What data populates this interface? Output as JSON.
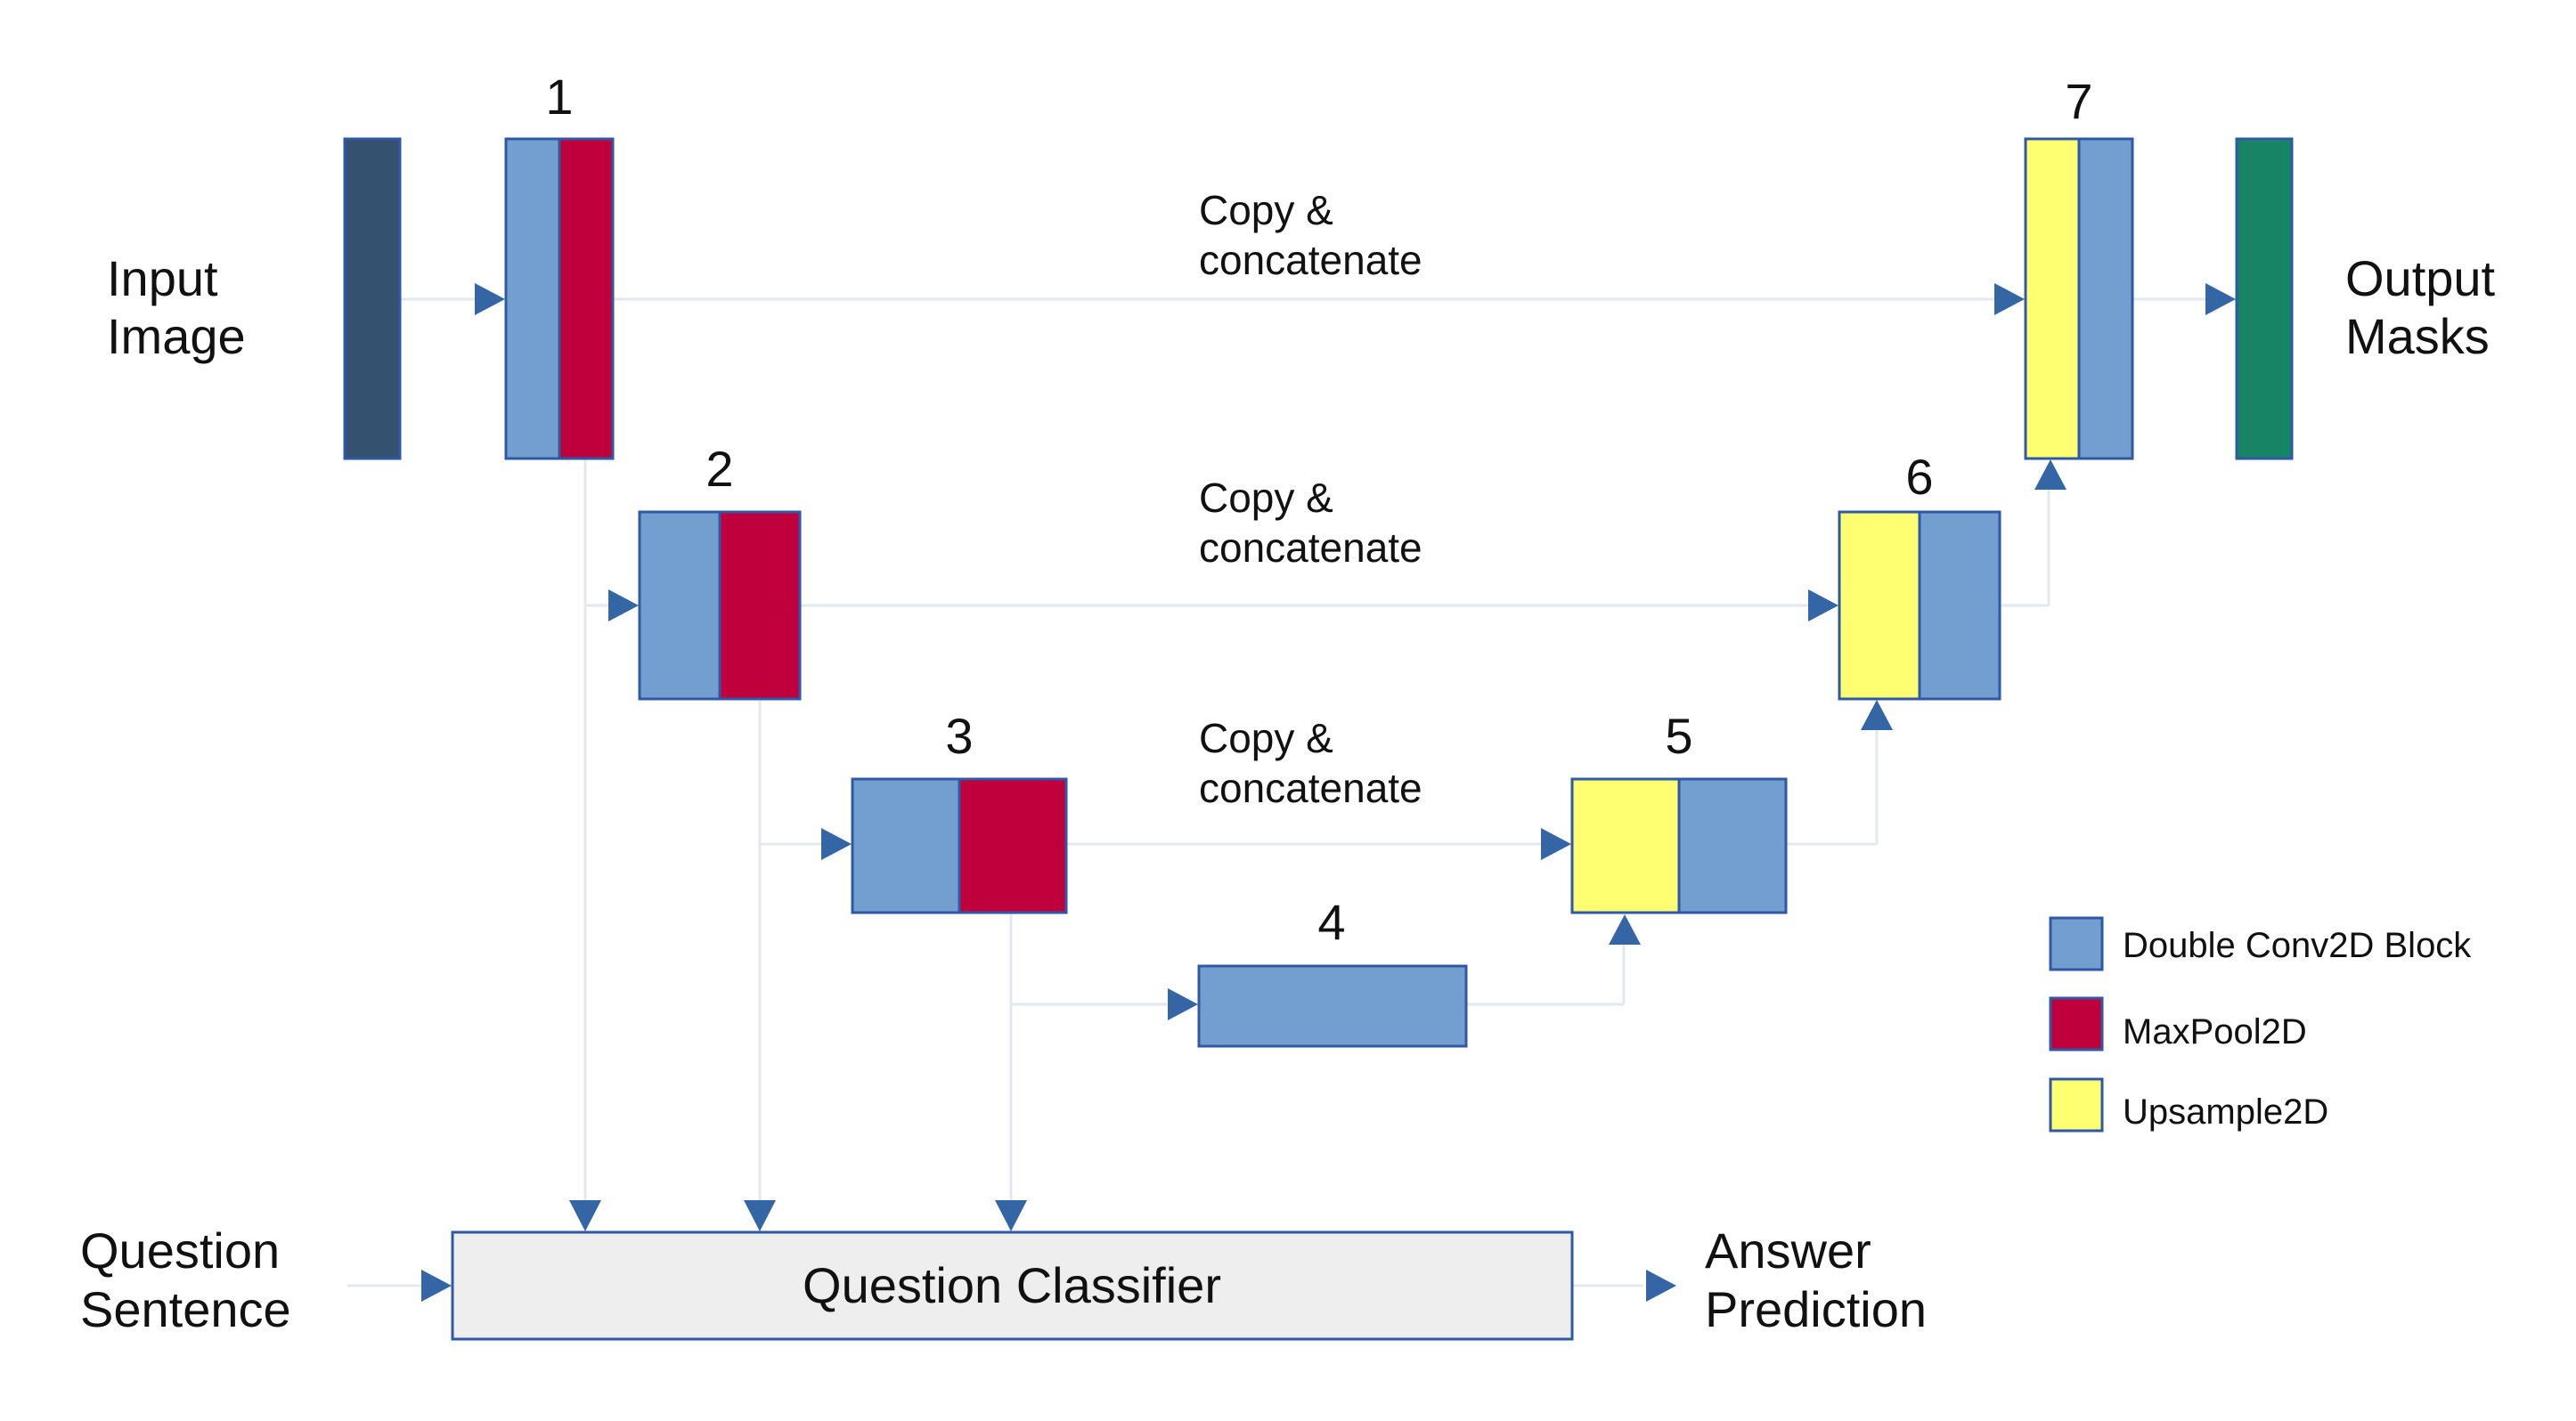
{
  "input_label": [
    "Input",
    "Image"
  ],
  "output_label": [
    "Output",
    "Masks"
  ],
  "question_label": [
    "Question",
    "Sentence"
  ],
  "answer_label": [
    "Answer",
    "Prediction"
  ],
  "classifier_label": "Question Classifier",
  "copy_labels": [
    [
      "Copy &",
      "concatenate"
    ],
    [
      "Copy &",
      "concatenate"
    ],
    [
      "Copy &",
      "concatenate"
    ]
  ],
  "block_numbers": [
    "1",
    "2",
    "3",
    "4",
    "5",
    "6",
    "7"
  ],
  "legend": [
    {
      "label": "Double Conv2D Block",
      "color": "#729fcf"
    },
    {
      "label": "MaxPool2D",
      "color": "#c0003c"
    },
    {
      "label": "Upsample2D",
      "color": "#ffff72"
    }
  ],
  "colors": {
    "conv": "#729fcf",
    "maxpool": "#c0003c",
    "upsample": "#ffff72",
    "input": "#34516f",
    "output": "#188466",
    "classifier": "#eeeeee",
    "arrow": "#3465a4",
    "border": "#2f58a6"
  }
}
